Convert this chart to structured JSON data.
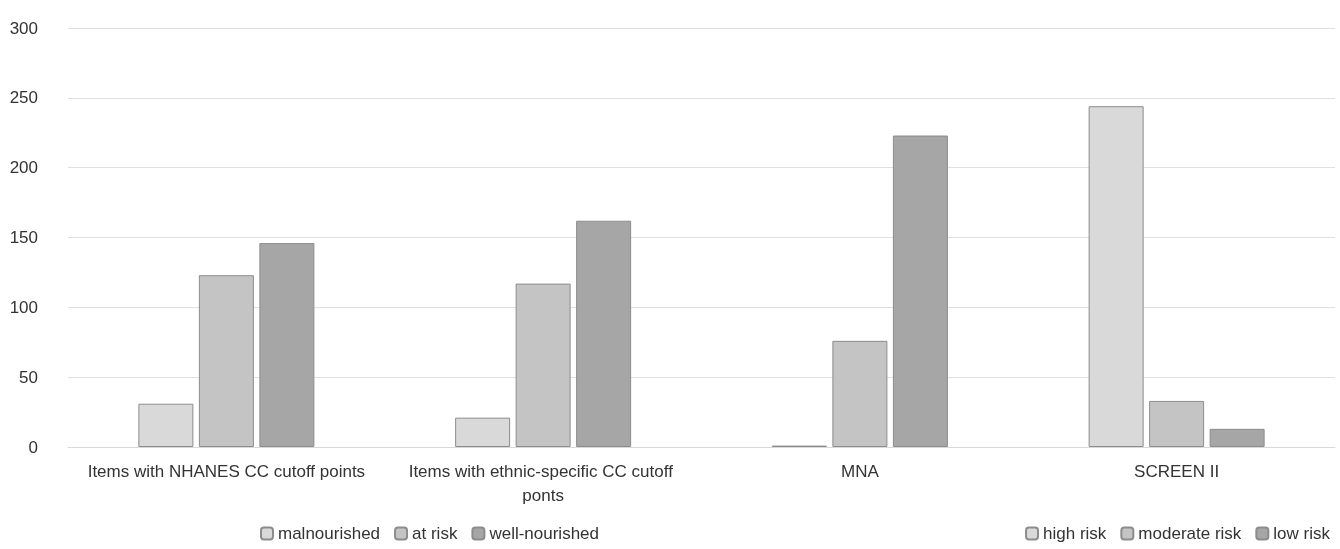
{
  "chart_data": {
    "type": "bar",
    "categories": [
      "Items with NHANES CC cutoff points",
      "Items with ethnic-specific CC cutoff ponts",
      "MNA",
      "SCREEN II"
    ],
    "series": [
      {
        "name": "malnourished",
        "color": "#d9d9d9",
        "values": [
          31,
          21,
          1,
          null
        ]
      },
      {
        "name": "at risk",
        "color": "#c4c4c4",
        "values": [
          123,
          117,
          76,
          null
        ]
      },
      {
        "name": "well-nourished",
        "color": "#a6a6a6",
        "values": [
          146,
          162,
          223,
          null
        ]
      },
      {
        "name": "high risk",
        "color": "#d9d9d9",
        "values": [
          null,
          null,
          null,
          244
        ]
      },
      {
        "name": "moderate risk",
        "color": "#c4c4c4",
        "values": [
          null,
          null,
          null,
          33
        ]
      },
      {
        "name": "low risk",
        "color": "#a6a6a6",
        "values": [
          null,
          null,
          null,
          13
        ]
      }
    ],
    "ylim": [
      0,
      300
    ],
    "yticks": [
      0,
      50,
      100,
      150,
      200,
      250,
      300
    ],
    "grid": "y",
    "legend": "bottom"
  }
}
